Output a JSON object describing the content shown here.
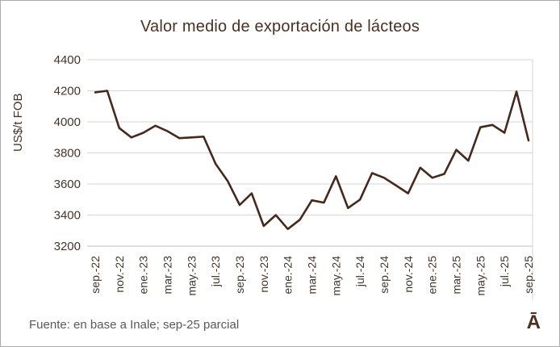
{
  "page": {
    "title": "Valor medio de exportación de lácteos",
    "footer": "Fuente: en base a Inale; sep-25 parcial",
    "logo": "Ā"
  },
  "chart_data": {
    "type": "line",
    "title": "Valor medio de exportación de lácteos",
    "ylabel": "US$/t FOB",
    "xlabel": "",
    "ylim": [
      3200,
      4400
    ],
    "ytick_step": 200,
    "grid": true,
    "legend": "none",
    "line_color": "#46291c",
    "grid_color": "#d6d6d6",
    "axis_color": "#bfbfbf",
    "tick_label_color": "#44352b",
    "x_tick_every": 2,
    "categories": [
      "sep.-22",
      "oct.-22",
      "nov.-22",
      "dic.-22",
      "ene.-23",
      "feb.-23",
      "mar.-23",
      "abr.-23",
      "may.-23",
      "jun.-23",
      "jul.-23",
      "ago.-23",
      "sep.-23",
      "oct.-23",
      "nov.-23",
      "dic.-23",
      "ene.-24",
      "feb.-24",
      "mar.-24",
      "abr.-24",
      "may.-24",
      "jun.-24",
      "jul.-24",
      "ago.-24",
      "sep.-24",
      "oct.-24",
      "nov.-24",
      "dic.-24",
      "ene.-25",
      "feb.-25",
      "mar.-25",
      "abr.-25",
      "may.-25",
      "jun.-25",
      "jul.-25",
      "ago.-25",
      "sep.-25"
    ],
    "values": [
      4190,
      4200,
      3960,
      3900,
      3930,
      3975,
      3940,
      3895,
      3900,
      3905,
      3730,
      3620,
      3465,
      3540,
      3330,
      3400,
      3310,
      3370,
      3495,
      3480,
      3650,
      3445,
      3500,
      3670,
      3640,
      3590,
      3540,
      3705,
      3640,
      3665,
      3820,
      3750,
      3965,
      3980,
      3930,
      4195,
      3880
    ]
  }
}
